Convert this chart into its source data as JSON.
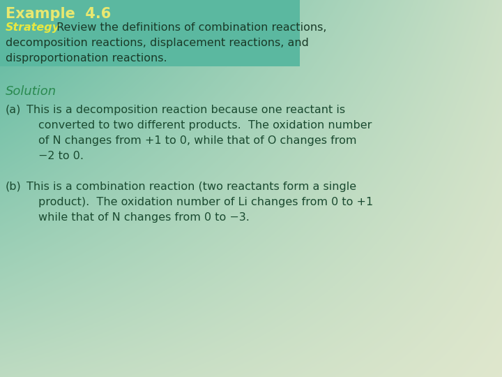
{
  "bg_color_left": "#5bb8a0",
  "bg_color_right": "#e8ead0",
  "box_color": "#5bb8a0",
  "example_text": "Example  4.6",
  "example_color": "#e8e870",
  "strategy_label": "Strategy",
  "strategy_color": "#e8e840",
  "strategy_rest": " Review the definitions of combination reactions,",
  "strategy_line2": "decomposition reactions, displacement reactions, and",
  "strategy_line3": "disproportionation reactions.",
  "solution_label": "Solution",
  "solution_color": "#2a8a50",
  "body_color": "#1a4a30",
  "part_a_label": "(a)",
  "part_a_line1": " This is a decomposition reaction because one reactant is",
  "part_a_line2": "     converted to two different products.  The oxidation number",
  "part_a_line3": "     of N changes from +1 to 0, while that of O changes from",
  "part_a_line4": "     −2 to 0.",
  "part_b_label": "(b)",
  "part_b_line1": " This is a combination reaction (two reactants form a single",
  "part_b_line2": "     product).  The oxidation number of Li changes from 0 to +1",
  "part_b_line3": "     while that of N changes from 0 to −3.",
  "font_size_title": 15,
  "font_size_body": 11.5,
  "font_size_solution": 13
}
